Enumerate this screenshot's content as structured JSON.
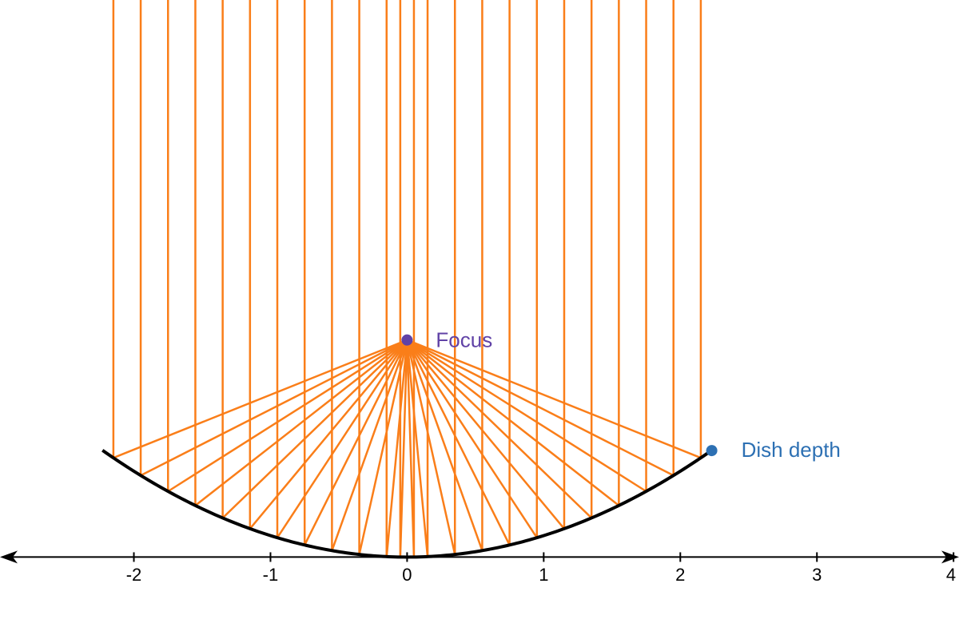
{
  "chart_data": {
    "type": "parabolic-reflector",
    "xlim": [
      -2.98,
      4.04
    ],
    "ylim": [
      -0.6,
      4.08
    ],
    "xticks": [
      -2,
      -1,
      0,
      1,
      2,
      3,
      4
    ],
    "focus": {
      "x": 0,
      "y": 1.59,
      "label": "Focus",
      "color": "#6042a6"
    },
    "dish_depth": {
      "x": 2.23,
      "y": 0.78,
      "label": "Dish depth",
      "color": "#2d70b3"
    },
    "rays": [
      -2.15,
      -1.95,
      -1.75,
      -1.55,
      -1.35,
      -1.15,
      -0.95,
      -0.75,
      -0.55,
      -0.35,
      -0.15,
      -0.05,
      0.05,
      0.15,
      0.35,
      0.55,
      0.75,
      0.95,
      1.15,
      1.35,
      1.55,
      1.75,
      1.95,
      2.15
    ],
    "ray_color": "#fa7e19",
    "curve_color": "#000000"
  }
}
